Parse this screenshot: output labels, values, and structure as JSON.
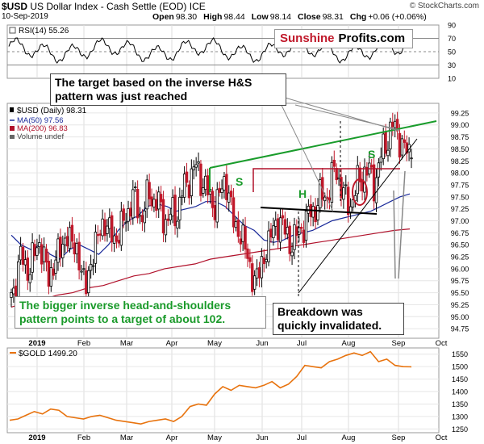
{
  "header": {
    "symbol": "$USD",
    "description": "US Dollar Index - Cash Settle (EOD) ICE",
    "date": "10-Sep-2019",
    "brand": "© StockCharts.com",
    "ohlc": [
      {
        "key": "Open",
        "value": "98.30"
      },
      {
        "key": "High",
        "value": "98.44"
      },
      {
        "key": "Low",
        "value": "98.14"
      },
      {
        "key": "Close",
        "value": "98.31"
      },
      {
        "key": "Chg",
        "value": "+0.06 (+0.06%)"
      }
    ]
  },
  "logo": {
    "part1": "Sunshine",
    "part2": "Profits.com"
  },
  "annotations": {
    "target": "The target based on the inverse H&S pattern was just reached",
    "bigger": "The bigger inverse head-and-shoulders pattern points to a target of about 102.",
    "breakdown": "Breakdown was quickly invalidated.",
    "s_left": "S",
    "h": "H",
    "s_right": "S"
  },
  "colors": {
    "up": "#000000",
    "down": "#c0182a",
    "ma50": "#1a2a9a",
    "ma200": "#b0102a",
    "trend_green": "#199c2b",
    "annotation_green": "#1a9a2a",
    "gold_line": "#e8730e",
    "rsi_line": "#000000"
  },
  "chart_data": [
    {
      "type": "line",
      "title": "RSI(14) 55.26",
      "series": [
        {
          "name": "RSI(14) 55.26",
          "last": 55.26
        }
      ],
      "y_ticks": [
        90,
        70,
        50,
        30,
        10
      ],
      "ylim": [
        10,
        90
      ],
      "reference_lines": [
        70,
        50,
        30
      ]
    },
    {
      "type": "candlestick",
      "title": "$USD (Daily) 98.31",
      "x_labels": [
        "2019",
        "Feb",
        "Mar",
        "Apr",
        "May",
        "Jun",
        "Jul",
        "Aug",
        "Sep",
        "Oct"
      ],
      "ylim": [
        94.5,
        99.5
      ],
      "y_ticks": [
        "99.25",
        "99.00",
        "98.75",
        "98.50",
        "98.25",
        "98.00",
        "97.75",
        "97.50",
        "97.25",
        "97.00",
        "96.75",
        "96.50",
        "96.25",
        "96.00",
        "95.75",
        "95.50",
        "95.25",
        "95.00",
        "94.75"
      ],
      "legend": [
        {
          "name": "$USD (Daily) 98.31",
          "color": "#000000"
        },
        {
          "name": "MA(50) 97.56",
          "color": "#1a2a9a"
        },
        {
          "name": "MA(200) 96.83",
          "color": "#b0102a"
        },
        {
          "name": "Volume undef",
          "color": "#666666"
        }
      ],
      "close_path": [
        95.4,
        96.2,
        96.0,
        96.6,
        95.8,
        96.3,
        96.7,
        96.4,
        95.6,
        96.5,
        97.0,
        96.6,
        96.9,
        97.5,
        97.1,
        97.6,
        97.2,
        97.0,
        97.3,
        97.9,
        98.1,
        97.6,
        97.3,
        97.9,
        96.9,
        96.6,
        95.7,
        96.1,
        96.8,
        97.0,
        96.5,
        96.8,
        97.1,
        97.4,
        97.6,
        98.1,
        97.3,
        97.6,
        98.1,
        97.8,
        98.5,
        99.0,
        98.6,
        98.31
      ],
      "ma50_path": [
        96.7,
        96.5,
        96.4,
        96.5,
        96.3,
        96.2,
        96.4,
        96.5,
        96.4,
        96.3,
        96.5,
        96.8,
        97.0,
        97.1,
        97.3,
        97.35,
        97.3,
        97.2,
        97.25,
        97.3,
        97.4,
        97.4,
        97.3,
        97.1,
        96.9,
        96.8,
        96.6,
        96.55,
        96.6,
        96.7,
        96.75,
        96.8,
        96.9,
        97.0,
        97.05,
        97.1,
        97.15,
        97.2,
        97.3,
        97.4,
        97.5,
        97.56
      ],
      "ma200_path": [
        95.2,
        95.3,
        95.35,
        95.45,
        95.5,
        95.6,
        95.65,
        95.75,
        95.85,
        95.9,
        96.0,
        96.05,
        96.1,
        96.2,
        96.25,
        96.3,
        96.35,
        96.4,
        96.45,
        96.5,
        96.55,
        96.6,
        96.65,
        96.7,
        96.75,
        96.8,
        96.83
      ]
    },
    {
      "type": "line",
      "title": "$GOLD 1499.20",
      "series": [
        {
          "name": "$GOLD 1499.20",
          "values": [
            1285,
            1290,
            1305,
            1320,
            1310,
            1330,
            1325,
            1300,
            1295,
            1290,
            1300,
            1305,
            1295,
            1285,
            1280,
            1275,
            1270,
            1280,
            1285,
            1290,
            1280,
            1300,
            1340,
            1350,
            1345,
            1390,
            1420,
            1405,
            1425,
            1420,
            1415,
            1425,
            1440,
            1415,
            1430,
            1460,
            1505,
            1500,
            1495,
            1520,
            1530,
            1545,
            1555,
            1545,
            1560,
            1520,
            1530,
            1505,
            1500,
            1499.2
          ]
        }
      ],
      "x_labels": [
        "2019",
        "Feb",
        "Mar",
        "Apr",
        "May",
        "Jun",
        "Jul",
        "Aug",
        "Sep",
        "Oct"
      ],
      "y_ticks": [
        1550,
        1500,
        1450,
        1400,
        1350,
        1300,
        1250
      ],
      "ylim": [
        1235,
        1575
      ]
    }
  ]
}
